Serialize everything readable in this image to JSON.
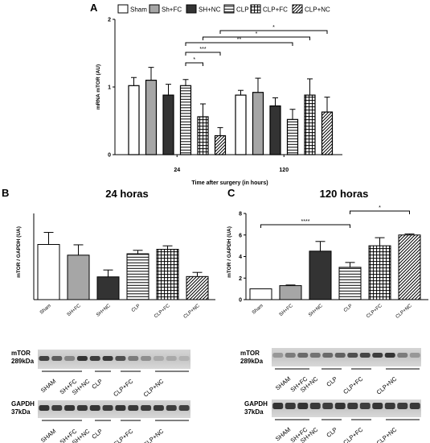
{
  "chart_data": [
    {
      "panel": "A",
      "type": "bar",
      "title": "",
      "ylabel": "mRNA mTOR (AU)",
      "xlabel": "Time after surgery (in hours)",
      "ylim": [
        0,
        2
      ],
      "yticks": [
        "0",
        "1",
        "2"
      ],
      "groups": [
        "24",
        "120"
      ],
      "legend": [
        "Sham",
        "Sh+FC",
        "SH+NC",
        "CLP",
        "CLP+FC",
        "CLP+NC"
      ],
      "series": [
        {
          "name": "Sham",
          "values": [
            1.02,
            0.88
          ],
          "errors": [
            0.12,
            0.07
          ],
          "pattern": "white"
        },
        {
          "name": "Sh+FC",
          "values": [
            1.1,
            0.92
          ],
          "errors": [
            0.19,
            0.21
          ],
          "pattern": "gray"
        },
        {
          "name": "SH+NC",
          "values": [
            0.88,
            0.72
          ],
          "errors": [
            0.16,
            0.12
          ],
          "pattern": "black"
        },
        {
          "name": "CLP",
          "values": [
            1.02,
            0.52
          ],
          "errors": [
            0.09,
            0.15
          ],
          "pattern": "hstripe"
        },
        {
          "name": "CLP+FC",
          "values": [
            0.56,
            0.88
          ],
          "errors": [
            0.19,
            0.24
          ],
          "pattern": "grid"
        },
        {
          "name": "CLP+NC",
          "values": [
            0.28,
            0.63
          ],
          "errors": [
            0.12,
            0.22
          ],
          "pattern": "diag"
        }
      ],
      "significance": [
        {
          "from": "24|CLP",
          "to": "24|CLP+FC",
          "label": "*"
        },
        {
          "from": "24|CLP",
          "to": "24|CLP+NC",
          "label": "***"
        },
        {
          "from": "24|CLP",
          "to": "120|CLP",
          "label": "**"
        },
        {
          "from": "24|CLP+FC",
          "to": "120|CLP+FC",
          "label": "*"
        },
        {
          "from": "24|CLP+NC",
          "to": "120|CLP+NC",
          "label": "*"
        }
      ]
    },
    {
      "panel": "B",
      "type": "bar",
      "title": "24 horas",
      "ylabel": "mTOR / GAPDH (UA)",
      "ylim": [
        0,
        2.5
      ],
      "yticks": [],
      "categories": [
        "Sham",
        "SH+FC",
        "SH+NC",
        "CLP",
        "CLP+FC",
        "CLP+NC"
      ],
      "values": [
        1.6,
        1.29,
        0.66,
        1.33,
        1.46,
        0.67
      ],
      "errors": [
        0.35,
        0.3,
        0.2,
        0.1,
        0.1,
        0.12
      ],
      "patterns": [
        "white",
        "gray",
        "black",
        "hstripe",
        "grid",
        "diag"
      ],
      "significance": []
    },
    {
      "panel": "C",
      "type": "bar",
      "title": "120 horas",
      "ylabel": "mTOR / GAPDH (UA)",
      "ylim": [
        0,
        8
      ],
      "yticks": [
        "0",
        "2",
        "4",
        "6",
        "8"
      ],
      "categories": [
        "Sham",
        "SH+FC",
        "SH+NC",
        "CLP",
        "CLP+FC",
        "CLP+NC"
      ],
      "values": [
        1.0,
        1.3,
        4.5,
        3.0,
        5.0,
        6.0
      ],
      "errors": [
        0.0,
        0.06,
        0.9,
        0.45,
        0.75,
        0.1
      ],
      "patterns": [
        "white",
        "gray",
        "black",
        "hstripe",
        "grid",
        "diag"
      ],
      "significance": [
        {
          "from": "Sham",
          "to": "CLP",
          "label": "****"
        },
        {
          "from": "CLP",
          "to": "CLP+NC",
          "label": "*"
        }
      ]
    }
  ],
  "panel_labels": {
    "a": "A",
    "b": "B",
    "c": "C"
  },
  "blots": {
    "b_mtor": {
      "name": "mTOR",
      "size": "289kDa"
    },
    "b_gapdh": {
      "name": "GAPDH",
      "size": "37kDa"
    },
    "c_mtor": {
      "name": "mTOR",
      "size": "289kDa"
    },
    "c_gapdh": {
      "name": "GAPDH",
      "size": "37kDa"
    },
    "lanes": [
      "SHAM",
      "SH+FC",
      "SH+NC",
      "CLP",
      "CLP+FC",
      "CLP+NC"
    ]
  }
}
